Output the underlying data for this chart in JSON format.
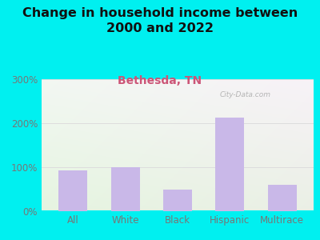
{
  "title": "Change in household income between\n2000 and 2022",
  "subtitle": "Bethesda, TN",
  "categories": [
    "All",
    "White",
    "Black",
    "Hispanic",
    "Multirace"
  ],
  "values": [
    93,
    100,
    50,
    213,
    60
  ],
  "bar_color": "#c9b8e8",
  "title_fontsize": 11.5,
  "subtitle_fontsize": 10,
  "subtitle_color": "#cc5577",
  "title_color": "#111111",
  "background_outer": "#00f0f0",
  "ylim": [
    0,
    300
  ],
  "yticks": [
    0,
    100,
    200,
    300
  ],
  "ytick_labels": [
    "0%",
    "100%",
    "200%",
    "300%"
  ],
  "watermark": "City-Data.com",
  "tick_color": "#777777",
  "tick_fontsize": 8.5
}
